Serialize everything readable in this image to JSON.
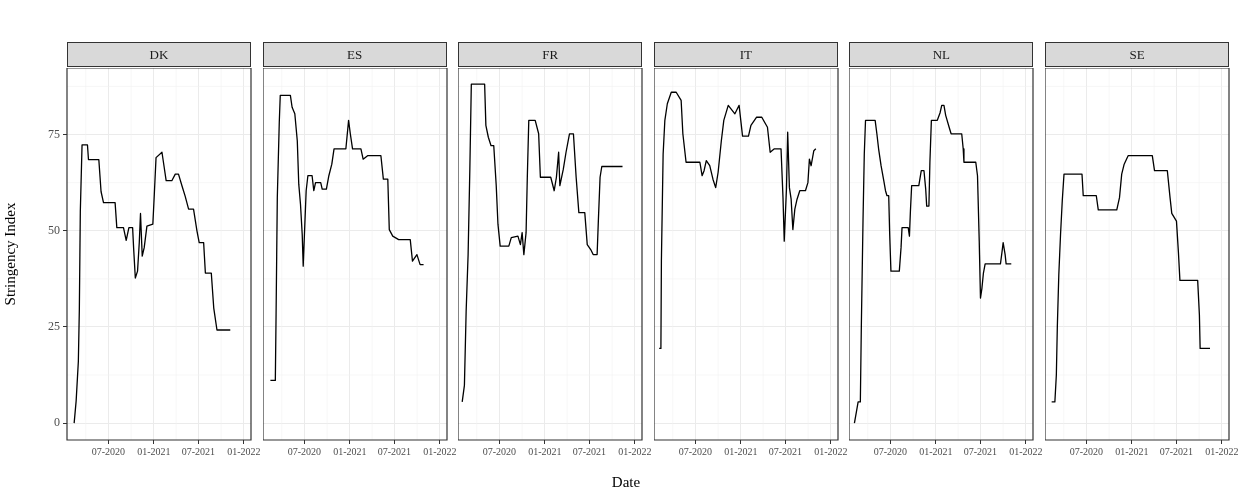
{
  "chart_data": [
    {
      "type": "line",
      "title": "DK",
      "ylabel": "Stringency Index",
      "color": "#000000",
      "marker": "none",
      "grid": true,
      "xlim": [
        "2020-01-15",
        "2022-01-30"
      ],
      "xticks": [
        {
          "value": "2020-07-01",
          "label": "07-2020"
        },
        {
          "value": "2021-01-01",
          "label": "01-2021"
        },
        {
          "value": "2021-07-01",
          "label": "07-2021"
        },
        {
          "value": "2022-01-01",
          "label": "01-2022"
        }
      ],
      "ylim": [
        -4.4,
        92.3
      ],
      "yticks": [
        0,
        25,
        50,
        75
      ],
      "x": [
        "2020-02-13",
        "2020-02-21",
        "2020-03-01",
        "2020-03-05",
        "2020-03-09",
        "2020-03-16",
        "2020-04-07",
        "2020-04-11",
        "2020-05-23",
        "2020-05-28",
        "2020-06-01",
        "2020-06-11",
        "2020-07-28",
        "2020-08-04",
        "2020-08-31",
        "2020-09-11",
        "2020-09-22",
        "2020-10-07",
        "2020-10-11",
        "2020-10-18",
        "2020-10-27",
        "2020-11-03",
        "2020-11-08",
        "2020-11-15",
        "2020-11-23",
        "2020-12-04",
        "2020-12-28",
        "2021-01-03",
        "2021-01-10",
        "2021-02-03",
        "2021-02-12",
        "2021-02-20",
        "2021-03-15",
        "2021-03-29",
        "2021-04-11",
        "2021-04-25",
        "2021-05-08",
        "2021-05-22",
        "2021-06-11",
        "2021-06-25",
        "2021-07-04",
        "2021-07-22",
        "2021-07-29",
        "2021-08-22",
        "2021-09-01",
        "2021-09-14",
        "2021-11-07"
      ],
      "values": [
        0,
        5.7,
        16,
        29.4,
        55,
        72.3,
        72.3,
        68.5,
        68.5,
        63.9,
        60.2,
        57.3,
        57.3,
        50.8,
        50.8,
        47.5,
        50.8,
        50.8,
        45.6,
        37.7,
        39.5,
        46.9,
        54.5,
        43.4,
        45.6,
        51.2,
        51.7,
        59.5,
        69,
        70.4,
        66.5,
        63,
        63,
        64.7,
        64.7,
        61.7,
        59,
        55.6,
        55.6,
        49.9,
        46.9,
        46.9,
        39,
        39,
        29.9,
        24.2,
        24.2
      ]
    },
    {
      "type": "line",
      "title": "ES",
      "color": "#000000",
      "marker": "none",
      "grid": true,
      "tick_labels": "x",
      "xlim": [
        "2020-01-15",
        "2022-01-30"
      ],
      "xticks": [
        {
          "value": "2020-07-01",
          "label": "07-2020"
        },
        {
          "value": "2021-01-01",
          "label": "01-2021"
        },
        {
          "value": "2021-07-01",
          "label": "07-2021"
        },
        {
          "value": "2022-01-01",
          "label": "01-2022"
        }
      ],
      "ylim": [
        -4.4,
        92.3
      ],
      "yticks": [
        0,
        25,
        50,
        75
      ],
      "x": [
        "2020-02-14",
        "2020-03-05",
        "2020-03-08",
        "2020-03-13",
        "2020-03-21",
        "2020-03-25",
        "2020-05-05",
        "2020-05-12",
        "2020-05-23",
        "2020-06-02",
        "2020-06-08",
        "2020-06-15",
        "2020-06-22",
        "2020-06-26",
        "2020-07-01",
        "2020-07-08",
        "2020-07-15",
        "2020-08-01",
        "2020-08-08",
        "2020-08-15",
        "2020-09-05",
        "2020-09-11",
        "2020-09-28",
        "2020-10-08",
        "2020-10-20",
        "2020-10-29",
        "2020-12-16",
        "2020-12-27",
        "2021-01-03",
        "2021-01-12",
        "2021-02-15",
        "2021-02-24",
        "2021-03-14",
        "2021-05-07",
        "2021-05-17",
        "2021-06-04",
        "2021-06-10",
        "2021-06-24",
        "2021-07-18",
        "2021-09-03",
        "2021-09-12",
        "2021-09-30",
        "2021-10-13",
        "2021-10-27"
      ],
      "values": [
        11.1,
        11.1,
        28.1,
        58.6,
        78.2,
        85.2,
        85.2,
        82.1,
        80.4,
        73.4,
        62.1,
        56.9,
        49,
        40.8,
        49,
        60.4,
        64.3,
        64.3,
        60.4,
        62.5,
        62.5,
        60.8,
        60.8,
        64.3,
        67.3,
        71.3,
        71.3,
        78.7,
        75.2,
        71.3,
        71.3,
        68.6,
        69.5,
        69.5,
        63.4,
        63.4,
        50.3,
        48.6,
        47.7,
        47.7,
        42.1,
        43.8,
        41.2,
        41.2
      ]
    },
    {
      "type": "line",
      "title": "FR",
      "color": "#000000",
      "marker": "none",
      "grid": true,
      "tick_labels": "x",
      "xlim": [
        "2020-01-15",
        "2022-01-30"
      ],
      "xticks": [
        {
          "value": "2020-07-01",
          "label": "07-2020"
        },
        {
          "value": "2021-01-01",
          "label": "01-2021"
        },
        {
          "value": "2021-07-01",
          "label": "07-2021"
        },
        {
          "value": "2022-01-01",
          "label": "01-2022"
        }
      ],
      "ylim": [
        -4.4,
        92.3
      ],
      "yticks": [
        0,
        25,
        50,
        75
      ],
      "x": [
        "2020-02-01",
        "2020-02-10",
        "2020-02-17",
        "2020-02-25",
        "2020-03-03",
        "2020-03-09",
        "2020-05-02",
        "2020-05-07",
        "2020-05-17",
        "2020-05-28",
        "2020-06-08",
        "2020-06-18",
        "2020-06-25",
        "2020-07-04",
        "2020-08-08",
        "2020-08-18",
        "2020-09-14",
        "2020-09-24",
        "2020-10-01",
        "2020-10-08",
        "2020-10-17",
        "2020-10-22",
        "2020-10-28",
        "2020-11-23",
        "2020-12-07",
        "2020-12-14",
        "2021-01-25",
        "2021-02-08",
        "2021-02-17",
        "2021-02-26",
        "2021-03-03",
        "2021-03-17",
        "2021-03-28",
        "2021-04-11",
        "2021-04-27",
        "2021-05-08",
        "2021-05-19",
        "2021-06-12",
        "2021-06-22",
        "2021-07-06",
        "2021-07-16",
        "2021-08-01",
        "2021-08-06",
        "2021-08-13",
        "2021-08-20",
        "2021-11-12"
      ],
      "values": [
        5.5,
        9.8,
        29,
        43.8,
        66,
        88.1,
        88.1,
        77.4,
        74.3,
        72.1,
        72.1,
        61.7,
        51.7,
        46,
        46,
        48.2,
        48.6,
        46.4,
        49.5,
        43.8,
        49.5,
        63.9,
        78.7,
        78.7,
        75.2,
        63.9,
        63.9,
        60.4,
        63.9,
        70.4,
        61.7,
        66,
        70.4,
        75.2,
        75.2,
        63.9,
        54.7,
        54.7,
        46.4,
        45.1,
        43.8,
        43.8,
        52.5,
        63.9,
        66.7,
        66.7
      ]
    },
    {
      "type": "line",
      "title": "IT",
      "xlabel": "Date",
      "color": "#000000",
      "marker": "none",
      "grid": true,
      "tick_labels": "x",
      "xlim": [
        "2020-01-15",
        "2022-01-30"
      ],
      "xticks": [
        {
          "value": "2020-07-01",
          "label": "07-2020"
        },
        {
          "value": "2021-01-01",
          "label": "01-2021"
        },
        {
          "value": "2021-07-01",
          "label": "07-2021"
        },
        {
          "value": "2022-01-01",
          "label": "01-2022"
        }
      ],
      "ylim": [
        -4.4,
        92.3
      ],
      "yticks": [
        0,
        25,
        50,
        75
      ],
      "x": [
        "2020-02-05",
        "2020-02-12",
        "2020-02-14",
        "2020-02-21",
        "2020-02-28",
        "2020-03-09",
        "2020-03-25",
        "2020-04-14",
        "2020-05-04",
        "2020-05-11",
        "2020-05-24",
        "2020-07-19",
        "2020-07-28",
        "2020-08-05",
        "2020-08-14",
        "2020-08-28",
        "2020-09-10",
        "2020-09-21",
        "2020-10-01",
        "2020-10-14",
        "2020-10-24",
        "2020-11-11",
        "2020-12-08",
        "2020-12-25",
        "2021-01-08",
        "2021-02-01",
        "2021-02-11",
        "2021-03-06",
        "2021-03-27",
        "2021-04-19",
        "2021-04-30",
        "2021-05-17",
        "2021-06-13",
        "2021-06-21",
        "2021-06-26",
        "2021-07-05",
        "2021-07-10",
        "2021-07-17",
        "2021-07-24",
        "2021-07-31",
        "2021-08-08",
        "2021-08-17",
        "2021-08-28",
        "2021-09-20",
        "2021-09-30",
        "2021-10-06",
        "2021-10-13",
        "2021-10-24",
        "2021-11-01"
      ],
      "values": [
        19.4,
        19.4,
        42.1,
        69.9,
        78.7,
        83,
        86,
        86,
        83.9,
        75.2,
        67.8,
        67.8,
        64.3,
        65.6,
        68.2,
        66.9,
        63.4,
        61.2,
        65.2,
        73.4,
        78.7,
        82.6,
        80.4,
        82.6,
        74.6,
        74.6,
        77.4,
        79.5,
        79.5,
        76.9,
        70.4,
        71.3,
        71.3,
        58.6,
        47.3,
        60.8,
        75.6,
        61.2,
        58.2,
        50.3,
        55.6,
        58.2,
        60.4,
        60.4,
        62.5,
        68.6,
        66.9,
        70.8,
        71.3
      ]
    },
    {
      "type": "line",
      "title": "NL",
      "color": "#000000",
      "marker": "none",
      "grid": true,
      "tick_labels": "x",
      "xlim": [
        "2020-01-15",
        "2022-01-30"
      ],
      "xticks": [
        {
          "value": "2020-07-01",
          "label": "07-2020"
        },
        {
          "value": "2021-01-01",
          "label": "01-2021"
        },
        {
          "value": "2021-07-01",
          "label": "07-2021"
        },
        {
          "value": "2022-01-01",
          "label": "01-2022"
        }
      ],
      "ylim": [
        -4.4,
        92.3
      ],
      "yticks": [
        0,
        25,
        50,
        75
      ],
      "x": [
        "2020-02-06",
        "2020-02-14",
        "2020-02-21",
        "2020-03-01",
        "2020-03-05",
        "2020-03-12",
        "2020-03-17",
        "2020-03-22",
        "2020-04-30",
        "2020-05-07",
        "2020-05-14",
        "2020-05-24",
        "2020-06-04",
        "2020-06-11",
        "2020-06-17",
        "2020-06-24",
        "2020-06-28",
        "2020-07-03",
        "2020-08-06",
        "2020-08-13",
        "2020-08-17",
        "2020-09-11",
        "2020-09-16",
        "2020-09-20",
        "2020-09-25",
        "2020-10-24",
        "2020-11-03",
        "2020-11-14",
        "2020-11-21",
        "2020-11-25",
        "2020-12-04",
        "2020-12-08",
        "2020-12-14",
        "2021-01-07",
        "2021-01-18",
        "2021-01-25",
        "2021-02-03",
        "2021-02-10",
        "2021-02-24",
        "2021-03-04",
        "2021-04-16",
        "2021-04-22",
        "2021-04-25",
        "2021-06-12",
        "2021-06-19",
        "2021-06-26",
        "2021-07-01",
        "2021-07-07",
        "2021-07-13",
        "2021-07-20",
        "2021-09-20",
        "2021-09-26",
        "2021-10-01",
        "2021-10-09",
        "2021-10-13",
        "2021-11-03"
      ],
      "values": [
        0,
        2.9,
        5.5,
        5.5,
        25.1,
        53.4,
        70,
        78.7,
        78.7,
        75.2,
        71.3,
        66.9,
        63,
        60.4,
        59.1,
        59.1,
        49,
        39.5,
        39.5,
        45.6,
        50.8,
        50.8,
        48.6,
        55.1,
        61.7,
        61.7,
        65.6,
        65.6,
        60.8,
        56.4,
        56.4,
        67.8,
        78.7,
        78.7,
        80.6,
        82.6,
        82.6,
        80,
        76.9,
        75.2,
        75.2,
        71.3,
        67.8,
        67.8,
        64.3,
        47.3,
        32.5,
        35.1,
        39,
        41.4,
        41.4,
        44.3,
        46.9,
        43.8,
        41.4,
        41.4
      ]
    },
    {
      "type": "line",
      "title": "SE",
      "color": "#000000",
      "marker": "none",
      "grid": true,
      "tick_labels": "x",
      "xlim": [
        "2020-01-15",
        "2022-01-30"
      ],
      "xticks": [
        {
          "value": "2020-07-01",
          "label": "07-2020"
        },
        {
          "value": "2021-01-01",
          "label": "01-2021"
        },
        {
          "value": "2021-07-01",
          "label": "07-2021"
        },
        {
          "value": "2022-01-01",
          "label": "01-2022"
        }
      ],
      "ylim": [
        -4.4,
        92.3
      ],
      "yticks": [
        0,
        25,
        50,
        75
      ],
      "x": [
        "2020-02-11",
        "2020-02-24",
        "2020-03-01",
        "2020-03-05",
        "2020-03-11",
        "2020-03-18",
        "2020-03-25",
        "2020-04-01",
        "2020-06-13",
        "2020-06-18",
        "2020-08-10",
        "2020-08-18",
        "2020-11-01",
        "2020-11-12",
        "2020-11-21",
        "2020-12-01",
        "2020-12-17",
        "2021-03-25",
        "2021-04-03",
        "2021-05-25",
        "2021-06-05",
        "2021-06-12",
        "2021-07-01",
        "2021-07-09",
        "2021-07-15",
        "2021-09-25",
        "2021-10-02",
        "2021-10-05",
        "2021-11-14"
      ],
      "values": [
        5.5,
        5.5,
        12.5,
        25.1,
        38.6,
        49,
        57.8,
        64.7,
        64.7,
        59.1,
        59.1,
        55.4,
        55.4,
        58.6,
        64.7,
        67.3,
        69.5,
        69.5,
        65.6,
        65.6,
        58.6,
        54.5,
        52.5,
        44.3,
        37.1,
        37.1,
        28.1,
        19.4,
        19.4
      ]
    }
  ]
}
